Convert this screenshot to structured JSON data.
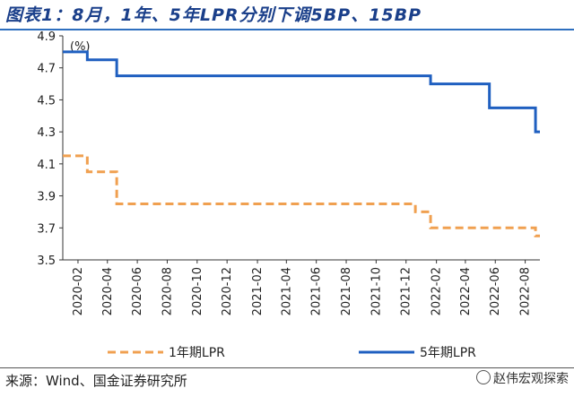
{
  "header": {
    "title": "图表1：8月，1年、5年LPR分别下调5BP、15BP"
  },
  "footer": {
    "source": "来源：Wind、国金证券研究所",
    "watermark": "赵伟宏观探索"
  },
  "colors": {
    "one_year": "#f0a050",
    "five_year": "#1f5fc0",
    "title": "#1a3f8a"
  },
  "chart_data": {
    "type": "line",
    "title": "8月，1年、5年LPR分别下调5BP、15BP",
    "ylabel": "(%)",
    "xlabel": "",
    "ylim": [
      3.5,
      4.9
    ],
    "yticks": [
      3.5,
      3.7,
      3.9,
      4.1,
      4.3,
      4.5,
      4.7,
      4.9
    ],
    "ytick_labels": [
      "3.5",
      "3.7",
      "3.9",
      "4.1",
      "4.3",
      "4.5",
      "4.7",
      "4.9"
    ],
    "xticks": [
      "2020-02",
      "2020-04",
      "2020-06",
      "2020-08",
      "2020-10",
      "2020-12",
      "2021-02",
      "2021-04",
      "2021-06",
      "2021-08",
      "2021-10",
      "2021-12",
      "2022-02",
      "2022-04",
      "2022-06",
      "2022-08"
    ],
    "x_range": [
      "2020-01-01",
      "2022-08-31"
    ],
    "legend_position": "bottom",
    "grid": false,
    "step": true,
    "series": [
      {
        "name": "1年期LPR",
        "style": "dashed",
        "points": [
          {
            "date": "2020-01-01",
            "value": 4.15
          },
          {
            "date": "2020-02-20",
            "value": 4.05
          },
          {
            "date": "2020-04-20",
            "value": 3.85
          },
          {
            "date": "2021-12-20",
            "value": 3.8
          },
          {
            "date": "2022-01-20",
            "value": 3.7
          },
          {
            "date": "2022-08-22",
            "value": 3.65
          },
          {
            "date": "2022-08-31",
            "value": 3.65
          }
        ]
      },
      {
        "name": "5年期LPR",
        "style": "solid",
        "points": [
          {
            "date": "2020-01-01",
            "value": 4.8
          },
          {
            "date": "2020-02-20",
            "value": 4.75
          },
          {
            "date": "2020-04-20",
            "value": 4.65
          },
          {
            "date": "2022-01-20",
            "value": 4.6
          },
          {
            "date": "2022-05-20",
            "value": 4.45
          },
          {
            "date": "2022-08-22",
            "value": 4.3
          },
          {
            "date": "2022-08-31",
            "value": 4.3
          }
        ]
      }
    ]
  }
}
